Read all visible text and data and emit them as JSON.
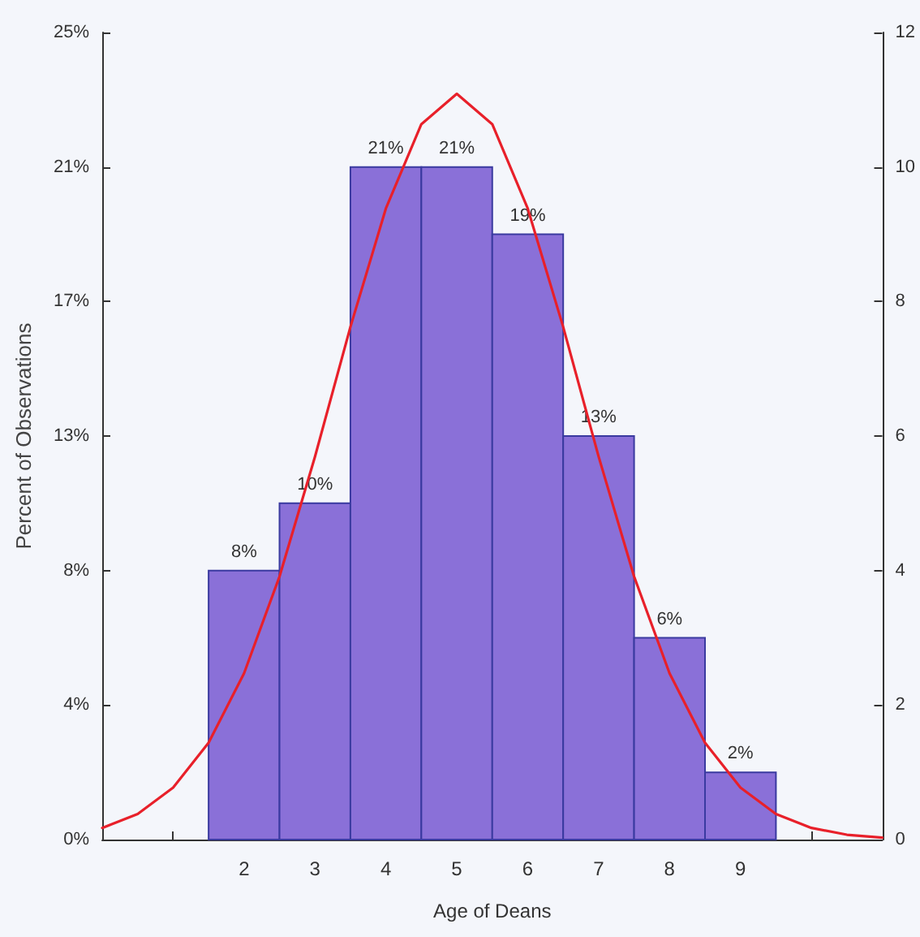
{
  "chart_data": {
    "type": "histogram",
    "xlabel": "Age of Deans",
    "ylabel": "Percent of Observations",
    "bins": [
      1.5,
      2.5,
      3.5,
      4.5,
      5.5,
      6.5,
      7.5,
      8.5,
      9.5
    ],
    "series": [
      {
        "color": "#8a70d8",
        "values": [
          8.33,
          10.42,
          20.83,
          20.83,
          18.75,
          12.5,
          6.25,
          2.08
        ],
        "value_labels": [
          "8%",
          "10%",
          "21%",
          "21%",
          "19%",
          "13%",
          "6%",
          "2%"
        ]
      },
      {
        "type": "line",
        "color": "#e8202a",
        "x": [
          0,
          0.5,
          1,
          1.5,
          2,
          2.5,
          3,
          3.5,
          4,
          4.5,
          5,
          5.5,
          6,
          6.5,
          7,
          7.5,
          8,
          8.5,
          9,
          9.5,
          10,
          10.5,
          11
        ],
        "values": [
          0.36,
          0.79,
          1.61,
          3.0,
          5.15,
          8.15,
          11.86,
          15.88,
          19.55,
          22.16,
          23.1,
          22.16,
          19.55,
          15.88,
          11.86,
          8.15,
          5.15,
          3.0,
          1.61,
          0.79,
          0.36,
          0.15,
          0.06
        ]
      }
    ],
    "xlim": [
      0,
      11
    ],
    "xticks": [
      {
        "value": 1,
        "label": null
      },
      2,
      3,
      4,
      5,
      6,
      7,
      8,
      9,
      {
        "value": 10,
        "label": null
      }
    ],
    "ylim": [
      0,
      25
    ],
    "yticks": [
      {
        "value": 0,
        "label": "0%"
      },
      {
        "value": 4.17,
        "label": "4%"
      },
      {
        "value": 8.33,
        "label": "8%"
      },
      {
        "value": 12.5,
        "label": "13%"
      },
      {
        "value": 16.67,
        "label": "17%"
      },
      {
        "value": 20.83,
        "label": "21%"
      },
      {
        "value": 25,
        "label": "25%"
      }
    ],
    "y2lim": [
      0,
      12
    ],
    "y2ticks": [
      0,
      2,
      4,
      6,
      8,
      10,
      12
    ],
    "grid": false,
    "marker": "none",
    "line_style": "solid"
  }
}
